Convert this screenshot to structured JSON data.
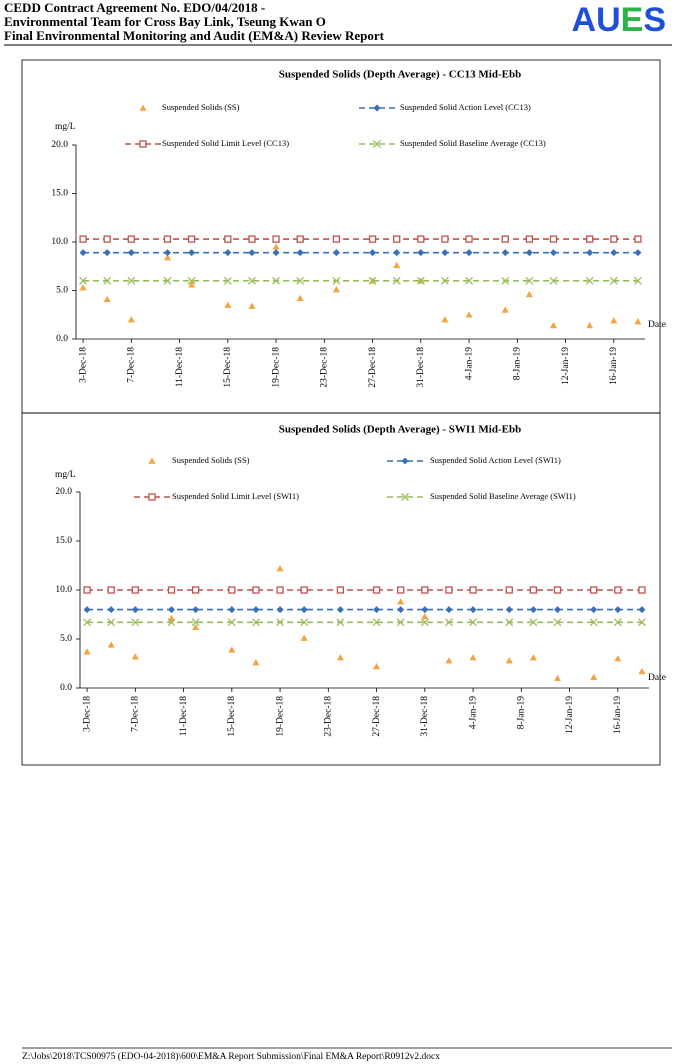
{
  "header": {
    "lines": [
      "CEDD Contract Agreement No. EDO/04/2018 -",
      "Environmental Team for Cross Bay Link, Tseung Kwan O",
      "Final Environmental Monitoring and Audit (EM&A) Review Report"
    ],
    "logo": "AUES"
  },
  "chart_data": [
    {
      "type": "scatter-line",
      "title": "Suspended Solids (Depth Average) - CC13 Mid-Ebb",
      "ylabel": "mg/L",
      "xlabel": "Date",
      "x": [
        "2018-12-03",
        "2018-12-05",
        "2018-12-07",
        "2018-12-10",
        "2018-12-12",
        "2018-12-15",
        "2018-12-17",
        "2018-12-19",
        "2018-12-21",
        "2018-12-24",
        "2018-12-27",
        "2018-12-29",
        "2018-12-31",
        "2019-01-02",
        "2019-01-04",
        "2019-01-07",
        "2019-01-09",
        "2019-01-11",
        "2019-01-14",
        "2019-01-16",
        "2019-01-18"
      ],
      "series": [
        {
          "name": "Suspended Solids (SS)",
          "color": "#f4a340",
          "marker": "triangle",
          "dashed": false,
          "values": [
            5.3,
            4.1,
            2.0,
            8.4,
            5.6,
            3.5,
            3.4,
            9.5,
            4.2,
            5.1,
            6.0,
            7.6,
            6.0,
            2.0,
            2.5,
            3.0,
            4.6,
            1.4,
            1.4,
            1.9,
            1.8
          ]
        },
        {
          "name": "Suspended Solid Action Level (CC13)",
          "color": "#3a6fb5",
          "marker": "diamond",
          "dashed": true,
          "values": [
            8.9,
            8.9,
            8.9,
            8.9,
            8.9,
            8.9,
            8.9,
            8.9,
            8.9,
            8.9,
            8.9,
            8.9,
            8.9,
            8.9,
            8.9,
            8.9,
            8.9,
            8.9,
            8.9,
            8.9,
            8.9
          ]
        },
        {
          "name": "Suspended Solid Limit Level (CC13)",
          "color": "#c0504d",
          "marker": "square",
          "dashed": true,
          "values": [
            10.3,
            10.3,
            10.3,
            10.3,
            10.3,
            10.3,
            10.3,
            10.3,
            10.3,
            10.3,
            10.3,
            10.3,
            10.3,
            10.3,
            10.3,
            10.3,
            10.3,
            10.3,
            10.3,
            10.3,
            10.3
          ]
        },
        {
          "name": "Suspended Solid Baseline Average (CC13)",
          "color": "#9bbb59",
          "marker": "x",
          "dashed": true,
          "values": [
            6.0,
            6.0,
            6.0,
            6.0,
            6.0,
            6.0,
            6.0,
            6.0,
            6.0,
            6.0,
            6.0,
            6.0,
            6.0,
            6.0,
            6.0,
            6.0,
            6.0,
            6.0,
            6.0,
            6.0,
            6.0
          ]
        }
      ],
      "xlim": [
        "2018-12-02",
        "2019-01-19"
      ],
      "xticks": [
        {
          "value": "2018-12-03",
          "label": "3-Dec-18"
        },
        {
          "value": "2018-12-07",
          "label": "7-Dec-18"
        },
        {
          "value": "2018-12-11",
          "label": "11-Dec-18"
        },
        {
          "value": "2018-12-15",
          "label": "15-Dec-18"
        },
        {
          "value": "2018-12-19",
          "label": "19-Dec-18"
        },
        {
          "value": "2018-12-23",
          "label": "23-Dec-18"
        },
        {
          "value": "2018-12-27",
          "label": "27-Dec-18"
        },
        {
          "value": "2018-12-31",
          "label": "31-Dec-18"
        },
        {
          "value": "2019-01-04",
          "label": "4-Jan-19"
        },
        {
          "value": "2019-01-08",
          "label": "8-Jan-19"
        },
        {
          "value": "2019-01-12",
          "label": "12-Jan-19"
        },
        {
          "value": "2019-01-16",
          "label": "16-Jan-19"
        }
      ],
      "ylim": [
        0,
        20
      ],
      "yticks": [
        {
          "value": 0,
          "label": "0.0"
        },
        {
          "value": 5,
          "label": "5.0"
        },
        {
          "value": 10,
          "label": "10.0"
        },
        {
          "value": 15,
          "label": "15.0"
        },
        {
          "value": 20,
          "label": "20.0"
        }
      ]
    },
    {
      "type": "scatter-line",
      "title": "Suspended Solids (Depth Average) - SWI1 Mid-Ebb",
      "ylabel": "mg/L",
      "xlabel": "Date",
      "x": [
        "2018-12-03",
        "2018-12-05",
        "2018-12-07",
        "2018-12-10",
        "2018-12-12",
        "2018-12-15",
        "2018-12-17",
        "2018-12-19",
        "2018-12-21",
        "2018-12-24",
        "2018-12-27",
        "2018-12-29",
        "2018-12-31",
        "2019-01-02",
        "2019-01-04",
        "2019-01-07",
        "2019-01-09",
        "2019-01-11",
        "2019-01-14",
        "2019-01-16",
        "2019-01-18"
      ],
      "series": [
        {
          "name": "Suspended Solids (SS)",
          "color": "#f4a340",
          "marker": "triangle",
          "dashed": false,
          "values": [
            3.7,
            4.4,
            3.2,
            7.1,
            6.2,
            3.9,
            2.6,
            12.2,
            5.1,
            3.1,
            2.2,
            8.8,
            7.3,
            2.8,
            3.1,
            2.8,
            3.1,
            1.0,
            1.1,
            3.0,
            1.7
          ]
        },
        {
          "name": "Suspended Solid Action Level (SWI1)",
          "color": "#3a6fb5",
          "marker": "diamond",
          "dashed": true,
          "values": [
            8.0,
            8.0,
            8.0,
            8.0,
            8.0,
            8.0,
            8.0,
            8.0,
            8.0,
            8.0,
            8.0,
            8.0,
            8.0,
            8.0,
            8.0,
            8.0,
            8.0,
            8.0,
            8.0,
            8.0,
            8.0
          ]
        },
        {
          "name": "Suspended Solid Limit Level (SWI1)",
          "color": "#c0504d",
          "marker": "square",
          "dashed": true,
          "values": [
            10.0,
            10.0,
            10.0,
            10.0,
            10.0,
            10.0,
            10.0,
            10.0,
            10.0,
            10.0,
            10.0,
            10.0,
            10.0,
            10.0,
            10.0,
            10.0,
            10.0,
            10.0,
            10.0,
            10.0,
            10.0
          ]
        },
        {
          "name": "Suspended Solid Baseline Average (SWI1)",
          "color": "#9bbb59",
          "marker": "x",
          "dashed": true,
          "values": [
            6.7,
            6.7,
            6.7,
            6.7,
            6.7,
            6.7,
            6.7,
            6.7,
            6.7,
            6.7,
            6.7,
            6.7,
            6.7,
            6.7,
            6.7,
            6.7,
            6.7,
            6.7,
            6.7,
            6.7,
            6.7
          ]
        }
      ],
      "xlim": [
        "2018-12-02",
        "2019-01-19"
      ],
      "xticks": [
        {
          "value": "2018-12-03",
          "label": "3-Dec-18"
        },
        {
          "value": "2018-12-07",
          "label": "7-Dec-18"
        },
        {
          "value": "2018-12-11",
          "label": "11-Dec-18"
        },
        {
          "value": "2018-12-15",
          "label": "15-Dec-18"
        },
        {
          "value": "2018-12-19",
          "label": "19-Dec-18"
        },
        {
          "value": "2018-12-23",
          "label": "23-Dec-18"
        },
        {
          "value": "2018-12-27",
          "label": "27-Dec-18"
        },
        {
          "value": "2018-12-31",
          "label": "31-Dec-18"
        },
        {
          "value": "2019-01-04",
          "label": "4-Jan-19"
        },
        {
          "value": "2019-01-08",
          "label": "8-Jan-19"
        },
        {
          "value": "2019-01-12",
          "label": "12-Jan-19"
        },
        {
          "value": "2019-01-16",
          "label": "16-Jan-19"
        }
      ],
      "ylim": [
        0,
        20
      ],
      "yticks": [
        {
          "value": 0,
          "label": "0.0"
        },
        {
          "value": 5,
          "label": "5.0"
        },
        {
          "value": 10,
          "label": "10.0"
        },
        {
          "value": 15,
          "label": "15.0"
        },
        {
          "value": 20,
          "label": "20.0"
        }
      ]
    }
  ],
  "footer": "Z:\\Jobs\\2018\\TCS00975 (EDO-04-2018)\\600\\EM&A Report Submission\\Final EM&A Report\\R0912v2.docx"
}
